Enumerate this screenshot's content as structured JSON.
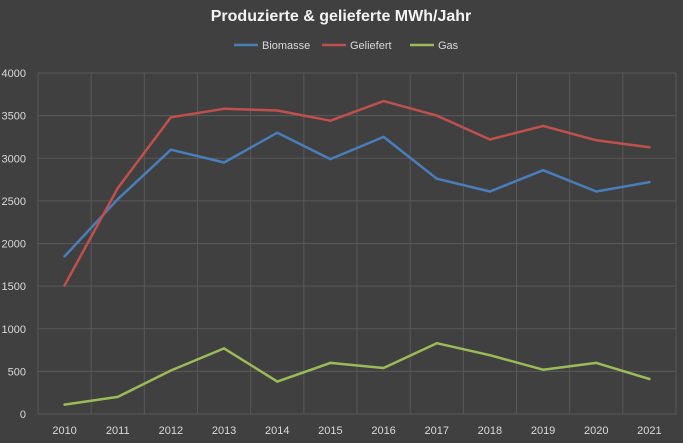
{
  "chart_data": {
    "type": "line",
    "title": "Produzierte & gelieferte MWh/Jahr",
    "xlabel": "",
    "ylabel": "",
    "categories": [
      "2010",
      "2011",
      "2012",
      "2013",
      "2014",
      "2015",
      "2016",
      "2017",
      "2018",
      "2019",
      "2020",
      "2021"
    ],
    "ylim": [
      0,
      4000
    ],
    "yticks": [
      0,
      500,
      1000,
      1500,
      2000,
      2500,
      3000,
      3500,
      4000
    ],
    "grid": true,
    "legend_position": "top",
    "series": [
      {
        "name": "Biomasse",
        "color": "#4a7ebb",
        "values": [
          1850,
          2520,
          3100,
          2950,
          3300,
          2990,
          3250,
          2760,
          2610,
          2860,
          2610,
          2720
        ]
      },
      {
        "name": "Geliefert",
        "color": "#c0504d",
        "values": [
          1510,
          2650,
          3480,
          3580,
          3560,
          3440,
          3670,
          3500,
          3220,
          3380,
          3210,
          3130
        ]
      },
      {
        "name": "Gas",
        "color": "#9bbb59",
        "values": [
          110,
          200,
          510,
          770,
          380,
          600,
          540,
          830,
          690,
          520,
          600,
          410
        ]
      }
    ]
  }
}
